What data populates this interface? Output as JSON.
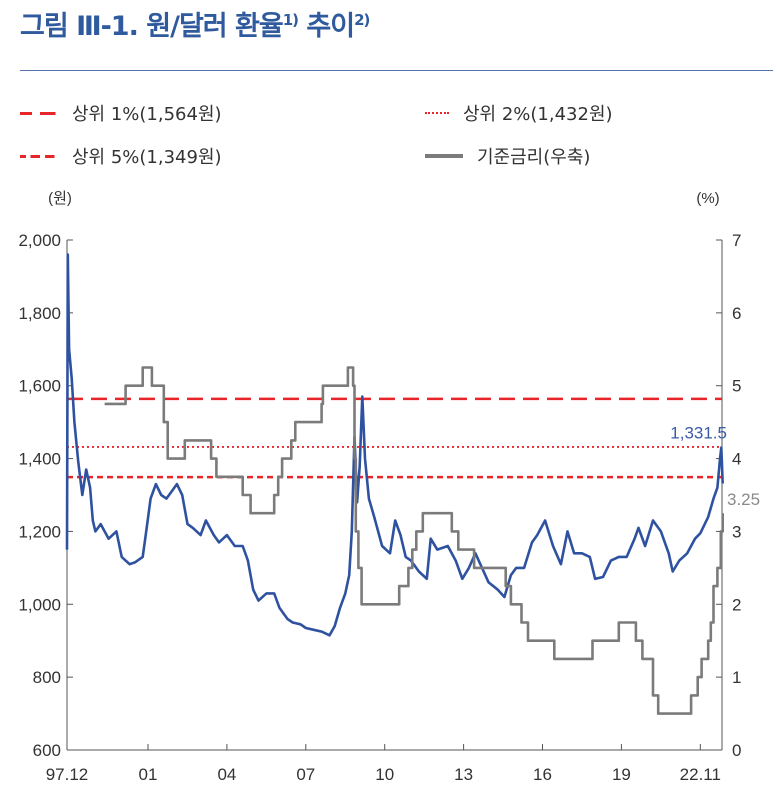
{
  "title": {
    "text": "그림 Ⅲ-1. 원/달러 환율",
    "sup1": "1)",
    "text2": " 추이",
    "sup2": "2)"
  },
  "legend": [
    {
      "label": "상위 1%(1,564원)",
      "style": "long-dash",
      "color": "#e8262a"
    },
    {
      "label": "상위 2%(1,432원)",
      "style": "dotted",
      "color": "#e8262a"
    },
    {
      "label": "상위 5%(1,349원)",
      "style": "short-dash",
      "color": "#e8262a"
    },
    {
      "label": "기준금리(우축)",
      "style": "solid",
      "color": "#7b7b7b"
    }
  ],
  "chart_data": {
    "type": "line",
    "ylabel_left": "(원)",
    "ylabel_right": "(%)",
    "ylim_left": [
      600,
      2000
    ],
    "ylim_right": [
      0,
      7
    ],
    "yticks_left": [
      "600",
      "800",
      "1,000",
      "1,200",
      "1,400",
      "1,600",
      "1,800",
      "2,000"
    ],
    "yticks_right": [
      "0",
      "1",
      "2",
      "3",
      "4",
      "5",
      "6",
      "7"
    ],
    "xticks": [
      {
        "label": "97.12",
        "x": 1997.92
      },
      {
        "label": "01",
        "x": 2001.0
      },
      {
        "label": "04",
        "x": 2004.0
      },
      {
        "label": "07",
        "x": 2007.0
      },
      {
        "label": "10",
        "x": 2010.0
      },
      {
        "label": "13",
        "x": 2013.0
      },
      {
        "label": "16",
        "x": 2016.0
      },
      {
        "label": "19",
        "x": 2019.0
      },
      {
        "label": "22.11",
        "x": 2022.0
      }
    ],
    "hlines": [
      {
        "name": "상위 1%",
        "value": 1564,
        "style": "long-dash"
      },
      {
        "name": "상위 2%",
        "value": 1432,
        "style": "dotted"
      },
      {
        "name": "상위 5%",
        "value": 1349,
        "style": "short-dash"
      }
    ],
    "series": [
      {
        "name": "원/달러 환율",
        "axis": "left",
        "color": "#2f52a0",
        "points": [
          [
            1997.92,
            1150
          ],
          [
            1997.95,
            1960
          ],
          [
            1998.0,
            1700
          ],
          [
            1998.1,
            1620
          ],
          [
            1998.2,
            1500
          ],
          [
            1998.35,
            1390
          ],
          [
            1998.5,
            1300
          ],
          [
            1998.65,
            1370
          ],
          [
            1998.8,
            1320
          ],
          [
            1998.9,
            1230
          ],
          [
            1999.0,
            1200
          ],
          [
            1999.2,
            1220
          ],
          [
            1999.5,
            1180
          ],
          [
            1999.8,
            1200
          ],
          [
            2000.0,
            1130
          ],
          [
            2000.3,
            1110
          ],
          [
            2000.5,
            1115
          ],
          [
            2000.8,
            1130
          ],
          [
            2000.95,
            1210
          ],
          [
            2001.1,
            1290
          ],
          [
            2001.3,
            1330
          ],
          [
            2001.5,
            1300
          ],
          [
            2001.7,
            1290
          ],
          [
            2001.9,
            1310
          ],
          [
            2002.1,
            1330
          ],
          [
            2002.3,
            1300
          ],
          [
            2002.5,
            1220
          ],
          [
            2002.7,
            1210
          ],
          [
            2003.0,
            1190
          ],
          [
            2003.2,
            1230
          ],
          [
            2003.5,
            1190
          ],
          [
            2003.7,
            1170
          ],
          [
            2004.0,
            1190
          ],
          [
            2004.3,
            1160
          ],
          [
            2004.6,
            1160
          ],
          [
            2004.8,
            1120
          ],
          [
            2005.0,
            1040
          ],
          [
            2005.2,
            1010
          ],
          [
            2005.5,
            1030
          ],
          [
            2005.8,
            1030
          ],
          [
            2006.0,
            990
          ],
          [
            2006.3,
            960
          ],
          [
            2006.5,
            950
          ],
          [
            2006.8,
            945
          ],
          [
            2007.0,
            935
          ],
          [
            2007.3,
            930
          ],
          [
            2007.6,
            925
          ],
          [
            2007.9,
            915
          ],
          [
            2008.1,
            940
          ],
          [
            2008.3,
            990
          ],
          [
            2008.5,
            1030
          ],
          [
            2008.65,
            1080
          ],
          [
            2008.75,
            1200
          ],
          [
            2008.85,
            1460
          ],
          [
            2008.95,
            1280
          ],
          [
            2009.05,
            1380
          ],
          [
            2009.15,
            1570
          ],
          [
            2009.25,
            1400
          ],
          [
            2009.4,
            1290
          ],
          [
            2009.6,
            1240
          ],
          [
            2009.9,
            1160
          ],
          [
            2010.2,
            1140
          ],
          [
            2010.4,
            1230
          ],
          [
            2010.6,
            1190
          ],
          [
            2010.8,
            1130
          ],
          [
            2011.0,
            1120
          ],
          [
            2011.3,
            1090
          ],
          [
            2011.6,
            1070
          ],
          [
            2011.75,
            1180
          ],
          [
            2012.0,
            1150
          ],
          [
            2012.4,
            1160
          ],
          [
            2012.7,
            1120
          ],
          [
            2012.95,
            1070
          ],
          [
            2013.2,
            1100
          ],
          [
            2013.45,
            1140
          ],
          [
            2013.7,
            1100
          ],
          [
            2013.95,
            1060
          ],
          [
            2014.3,
            1040
          ],
          [
            2014.55,
            1020
          ],
          [
            2014.8,
            1080
          ],
          [
            2015.0,
            1100
          ],
          [
            2015.3,
            1100
          ],
          [
            2015.6,
            1170
          ],
          [
            2015.8,
            1190
          ],
          [
            2016.1,
            1230
          ],
          [
            2016.4,
            1160
          ],
          [
            2016.7,
            1110
          ],
          [
            2016.95,
            1200
          ],
          [
            2017.2,
            1140
          ],
          [
            2017.5,
            1140
          ],
          [
            2017.8,
            1130
          ],
          [
            2018.0,
            1070
          ],
          [
            2018.3,
            1075
          ],
          [
            2018.6,
            1120
          ],
          [
            2018.9,
            1130
          ],
          [
            2019.2,
            1130
          ],
          [
            2019.5,
            1180
          ],
          [
            2019.65,
            1210
          ],
          [
            2019.9,
            1160
          ],
          [
            2020.2,
            1230
          ],
          [
            2020.5,
            1200
          ],
          [
            2020.8,
            1140
          ],
          [
            2020.95,
            1090
          ],
          [
            2021.2,
            1120
          ],
          [
            2021.5,
            1140
          ],
          [
            2021.8,
            1180
          ],
          [
            2022.0,
            1195
          ],
          [
            2022.3,
            1240
          ],
          [
            2022.5,
            1290
          ],
          [
            2022.65,
            1320
          ],
          [
            2022.75,
            1400
          ],
          [
            2022.8,
            1430
          ],
          [
            2022.85,
            1331.5
          ]
        ]
      },
      {
        "name": "기준금리",
        "axis": "right",
        "color": "#7b7b7b",
        "step": true,
        "points": [
          [
            1999.35,
            4.75
          ],
          [
            2000.15,
            5.0
          ],
          [
            2000.8,
            5.25
          ],
          [
            2001.15,
            5.0
          ],
          [
            2001.6,
            4.5
          ],
          [
            2001.75,
            4.0
          ],
          [
            2002.4,
            4.25
          ],
          [
            2003.4,
            4.0
          ],
          [
            2003.6,
            3.75
          ],
          [
            2004.6,
            3.5
          ],
          [
            2004.9,
            3.25
          ],
          [
            2005.8,
            3.5
          ],
          [
            2005.95,
            3.75
          ],
          [
            2006.1,
            4.0
          ],
          [
            2006.45,
            4.25
          ],
          [
            2006.6,
            4.5
          ],
          [
            2007.6,
            4.75
          ],
          [
            2007.65,
            5.0
          ],
          [
            2008.6,
            5.25
          ],
          [
            2008.8,
            5.0
          ],
          [
            2008.85,
            4.0
          ],
          [
            2008.9,
            3.0
          ],
          [
            2009.0,
            2.5
          ],
          [
            2009.12,
            2.0
          ],
          [
            2010.55,
            2.25
          ],
          [
            2010.9,
            2.5
          ],
          [
            2011.05,
            2.75
          ],
          [
            2011.2,
            3.0
          ],
          [
            2011.45,
            3.25
          ],
          [
            2012.55,
            3.0
          ],
          [
            2012.8,
            2.75
          ],
          [
            2013.4,
            2.5
          ],
          [
            2014.6,
            2.25
          ],
          [
            2014.8,
            2.0
          ],
          [
            2015.2,
            1.75
          ],
          [
            2015.45,
            1.5
          ],
          [
            2016.45,
            1.25
          ],
          [
            2017.9,
            1.5
          ],
          [
            2018.9,
            1.75
          ],
          [
            2019.55,
            1.5
          ],
          [
            2019.8,
            1.25
          ],
          [
            2020.2,
            0.75
          ],
          [
            2020.4,
            0.5
          ],
          [
            2021.65,
            0.75
          ],
          [
            2021.9,
            1.0
          ],
          [
            2022.05,
            1.25
          ],
          [
            2022.3,
            1.5
          ],
          [
            2022.4,
            1.75
          ],
          [
            2022.5,
            2.25
          ],
          [
            2022.65,
            2.5
          ],
          [
            2022.78,
            3.0
          ],
          [
            2022.85,
            3.25
          ]
        ]
      }
    ],
    "annotations": [
      {
        "text": "1,331.5",
        "series": "원/달러 환율",
        "color": "#3a5ba8"
      },
      {
        "text": "3.25",
        "series": "기준금리",
        "color": "#8a8a8a"
      }
    ]
  }
}
